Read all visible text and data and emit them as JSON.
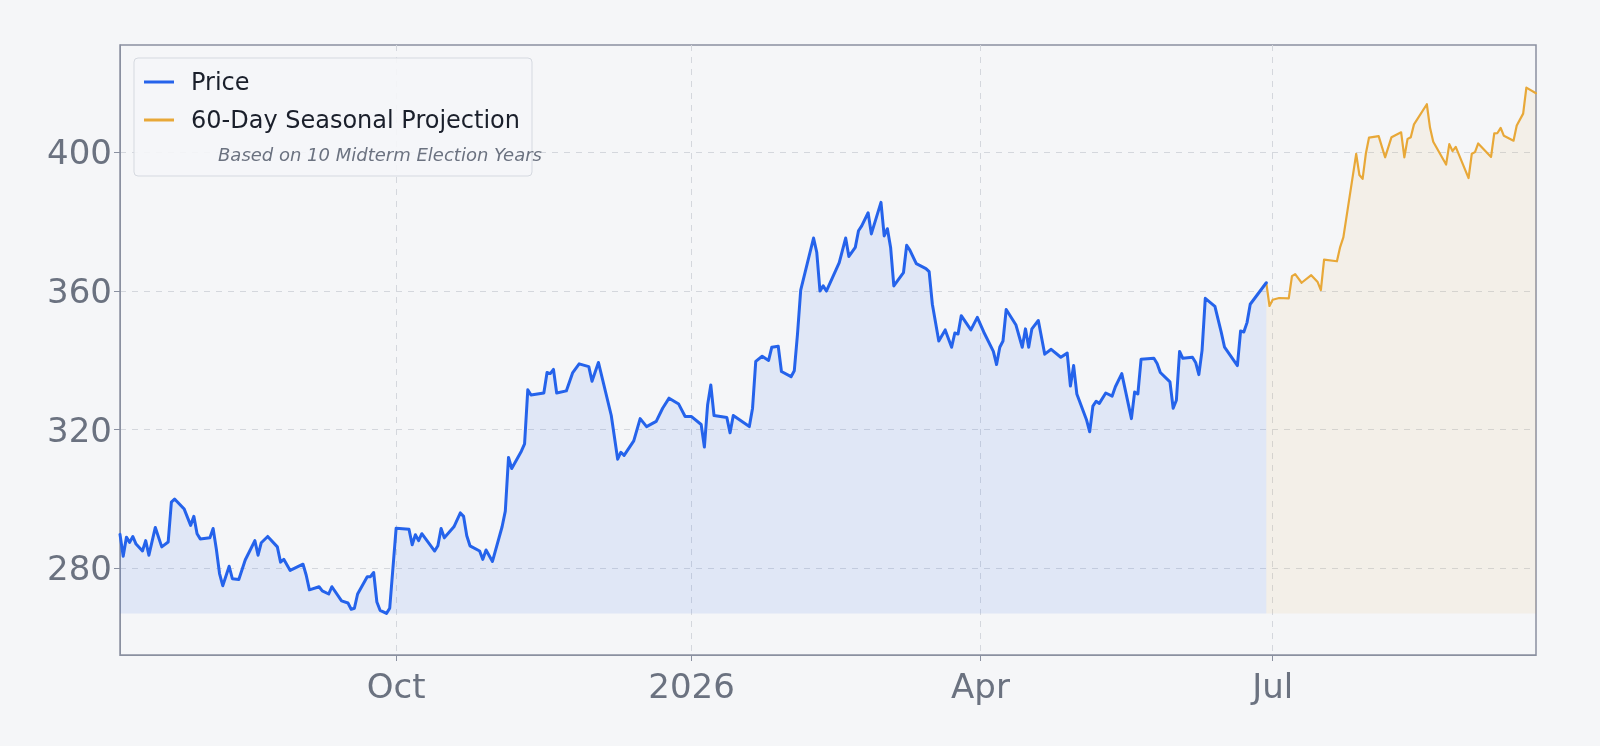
{
  "chart_data": {
    "type": "area",
    "marker": "none",
    "grid": true,
    "legend": "top left",
    "annotations": [
      "Based on 10 Midterm Election Years"
    ],
    "xlim": [
      "2025-07-07",
      "2026-09-21"
    ],
    "xticks": [
      {
        "value": "2025-10-01",
        "label": "Oct"
      },
      {
        "value": "2026-01-01",
        "label": "2026"
      },
      {
        "value": "2026-04-01",
        "label": "Apr"
      },
      {
        "value": "2026-07-01",
        "label": "Jul"
      }
    ],
    "ylim": [
      255,
      431
    ],
    "yticks": [
      280,
      320,
      360,
      400
    ],
    "series": [
      {
        "name": "Price",
        "color": "#2563eb",
        "x": [
          "2025-07-07",
          "2025-07-08",
          "2025-07-09",
          "2025-07-10",
          "2025-07-11",
          "2025-07-12",
          "2025-07-14",
          "2025-07-15",
          "2025-07-16",
          "2025-07-18",
          "2025-07-20",
          "2025-07-22",
          "2025-07-23",
          "2025-07-24",
          "2025-07-27",
          "2025-07-29",
          "2025-07-30",
          "2025-07-31",
          "2025-08-01",
          "2025-08-04",
          "2025-08-05",
          "2025-08-06",
          "2025-08-07",
          "2025-08-08",
          "2025-08-10",
          "2025-08-11",
          "2025-08-13",
          "2025-08-15",
          "2025-08-18",
          "2025-08-19",
          "2025-08-20",
          "2025-08-22",
          "2025-08-25",
          "2025-08-26",
          "2025-08-27",
          "2025-08-29",
          "2025-09-02",
          "2025-09-03",
          "2025-09-04",
          "2025-09-07",
          "2025-09-08",
          "2025-09-10",
          "2025-09-11",
          "2025-09-14",
          "2025-09-16",
          "2025-09-17",
          "2025-09-18",
          "2025-09-19",
          "2025-09-22",
          "2025-09-23",
          "2025-09-24",
          "2025-09-25",
          "2025-09-26",
          "2025-09-28",
          "2025-09-29",
          "2025-10-01",
          "2025-10-05",
          "2025-10-06",
          "2025-10-07",
          "2025-10-08",
          "2025-10-09",
          "2025-10-13",
          "2025-10-14",
          "2025-10-15",
          "2025-10-16",
          "2025-10-19",
          "2025-10-21",
          "2025-10-22",
          "2025-10-23",
          "2025-10-24",
          "2025-10-27",
          "2025-10-28",
          "2025-10-29",
          "2025-10-31",
          "2025-11-03",
          "2025-11-04",
          "2025-11-05",
          "2025-11-06",
          "2025-11-09",
          "2025-11-10",
          "2025-11-11",
          "2025-11-12",
          "2025-11-16",
          "2025-11-17",
          "2025-11-18",
          "2025-11-19",
          "2025-11-20",
          "2025-11-23",
          "2025-11-25",
          "2025-11-27",
          "2025-11-30",
          "2025-12-01",
          "2025-12-03",
          "2025-12-07",
          "2025-12-09",
          "2025-12-10",
          "2025-12-11",
          "2025-12-14",
          "2025-12-16",
          "2025-12-18",
          "2025-12-21",
          "2025-12-23",
          "2025-12-25",
          "2025-12-28",
          "2025-12-30",
          "2026-01-01",
          "2026-01-04",
          "2026-01-05",
          "2026-01-06",
          "2026-01-07",
          "2026-01-08",
          "2026-01-12",
          "2026-01-13",
          "2026-01-14",
          "2026-01-19",
          "2026-01-20",
          "2026-01-21",
          "2026-01-23",
          "2026-01-25",
          "2026-01-26",
          "2026-01-28",
          "2026-01-29",
          "2026-02-01",
          "2026-02-02",
          "2026-02-03",
          "2026-02-04",
          "2026-02-08",
          "2026-02-09",
          "2026-02-10",
          "2026-02-11",
          "2026-02-12",
          "2026-02-16",
          "2026-02-18",
          "2026-02-19",
          "2026-02-21",
          "2026-02-22",
          "2026-02-23",
          "2026-02-25",
          "2026-02-26",
          "2026-03-01",
          "2026-03-02",
          "2026-03-03",
          "2026-03-04",
          "2026-03-05",
          "2026-03-08",
          "2026-03-09",
          "2026-03-10",
          "2026-03-12",
          "2026-03-15",
          "2026-03-16",
          "2026-03-17",
          "2026-03-19",
          "2026-03-21",
          "2026-03-23",
          "2026-03-24",
          "2026-03-25",
          "2026-03-26",
          "2026-03-29",
          "2026-03-31",
          "2026-04-02",
          "2026-04-05",
          "2026-04-06",
          "2026-04-07",
          "2026-04-08",
          "2026-04-09",
          "2026-04-12",
          "2026-04-14",
          "2026-04-15",
          "2026-04-16",
          "2026-04-17",
          "2026-04-19",
          "2026-04-21",
          "2026-04-23",
          "2026-04-26",
          "2026-04-28",
          "2026-04-29",
          "2026-04-30",
          "2026-05-01",
          "2026-05-04",
          "2026-05-05",
          "2026-05-06",
          "2026-05-07",
          "2026-05-08",
          "2026-05-10",
          "2026-05-12",
          "2026-05-13",
          "2026-05-15",
          "2026-05-18",
          "2026-05-19",
          "2026-05-20",
          "2026-05-21",
          "2026-05-25",
          "2026-05-26",
          "2026-05-27",
          "2026-05-30",
          "2026-05-31",
          "2026-06-01",
          "2026-06-02",
          "2026-06-03",
          "2026-06-06",
          "2026-06-07",
          "2026-06-08",
          "2026-06-09",
          "2026-06-10",
          "2026-06-13",
          "2026-06-15",
          "2026-06-16",
          "2026-06-20",
          "2026-06-21",
          "2026-06-22",
          "2026-06-23",
          "2026-06-24",
          "2026-06-29"
        ],
        "values": [
          289.8,
          283.5,
          289,
          287.5,
          289.2,
          287,
          285,
          288,
          283.8,
          291.8,
          286.2,
          287.6,
          299.1,
          300,
          297.1,
          292.4,
          295,
          290,
          288.5,
          288.8,
          291.5,
          285.6,
          278.5,
          275,
          280.6,
          277,
          276.8,
          282.4,
          288,
          283.8,
          287.4,
          289.2,
          286.2,
          281.8,
          282.6,
          279.4,
          281.2,
          278,
          273.8,
          274.7,
          273.5,
          272.6,
          274.7,
          270.6,
          270,
          268.2,
          268.5,
          272.6,
          277.6,
          277.6,
          278.8,
          270.3,
          267.9,
          267,
          268.5,
          291.6,
          291.3,
          286.8,
          289.7,
          288,
          290,
          285,
          286.5,
          291.5,
          288.8,
          292,
          296,
          295,
          289.4,
          286.5,
          285,
          282.6,
          285.3,
          282,
          292,
          296.5,
          312,
          308.8,
          313.8,
          315.9,
          331.5,
          330,
          330.6,
          336.5,
          336.2,
          337.4,
          330.6,
          331.2,
          336.5,
          339,
          338.2,
          334,
          339.4,
          324.1,
          311.5,
          313.5,
          312.6,
          316.8,
          323.2,
          320.9,
          322.4,
          326.2,
          329.1,
          327.4,
          323.8,
          323.8,
          321.5,
          315,
          327.1,
          332.9,
          324.1,
          323.5,
          319.1,
          324.1,
          320.9,
          326.2,
          339.7,
          341.2,
          340,
          343.8,
          344.1,
          336.8,
          335.3,
          337,
          347.6,
          360.3,
          375.3,
          371.2,
          360,
          361.5,
          360,
          368.2,
          375.3,
          370,
          372.6,
          377.4,
          378.8,
          382.6,
          376.5,
          385.6,
          375.9,
          378,
          372.6,
          361.5,
          365.3,
          373.2,
          371.8,
          367.9,
          366.5,
          365.6,
          356.2,
          345.6,
          348.8,
          343.8,
          347.9,
          347.6,
          352.9,
          348.8,
          352.4,
          348.2,
          342.6,
          338.8,
          343.8,
          345.6,
          354.7,
          350.3,
          343.8,
          349.1,
          343.8,
          349.1,
          351.5,
          341.8,
          343.2,
          340.9,
          342.1,
          332.6,
          338.5,
          330.3,
          322.9,
          319.4,
          326.8,
          328.2,
          327.6,
          330.6,
          329.7,
          332.4,
          336.2,
          323.2,
          330.9,
          330.3,
          340.3,
          340.6,
          339.1,
          336.5,
          333.8,
          326.2,
          328.5,
          342.6,
          340.6,
          340.9,
          339.4,
          335.9,
          342.9,
          357.9,
          355.6,
          348,
          343.8,
          338.5,
          348.5,
          348.2,
          350.9,
          356.2,
          362.4
        ]
      },
      {
        "name": "60-Day Seasonal Projection",
        "color": "#e8a838",
        "x": [
          "2026-06-29",
          "2026-06-30",
          "2026-07-01",
          "2026-07-03",
          "2026-07-06",
          "2026-07-07",
          "2026-07-08",
          "2026-07-10",
          "2026-07-13",
          "2026-07-15",
          "2026-07-16",
          "2026-07-17",
          "2026-07-21",
          "2026-07-22",
          "2026-07-23",
          "2026-07-27",
          "2026-07-28",
          "2026-07-29",
          "2026-07-30",
          "2026-07-31",
          "2026-08-03",
          "2026-08-05",
          "2026-08-07",
          "2026-08-10",
          "2026-08-11",
          "2026-08-12",
          "2026-08-13",
          "2026-08-14",
          "2026-08-18",
          "2026-08-19",
          "2026-08-20",
          "2026-08-24",
          "2026-08-25",
          "2026-08-26",
          "2026-08-27",
          "2026-08-31",
          "2026-09-01",
          "2026-09-02",
          "2026-09-03",
          "2026-09-07",
          "2026-09-08",
          "2026-09-09",
          "2026-09-10",
          "2026-09-11",
          "2026-09-14",
          "2026-09-15",
          "2026-09-17",
          "2026-09-18",
          "2026-09-21"
        ],
        "values": [
          362.4,
          355.7,
          357.5,
          358,
          357.9,
          364.3,
          364.9,
          362.4,
          364.6,
          362.6,
          360.3,
          369.1,
          368.6,
          372.7,
          375.5,
          399.6,
          393.5,
          392.4,
          399.6,
          404.3,
          404.7,
          398.6,
          404.4,
          405.8,
          398.6,
          403.9,
          404.4,
          408.1,
          413.9,
          407.1,
          403.1,
          396.5,
          402.4,
          400.4,
          401.6,
          392.6,
          399.6,
          400.1,
          402.6,
          398.7,
          405.5,
          405.6,
          407.1,
          404.8,
          403.4,
          407.8,
          411.2,
          418.7,
          417.1
        ]
      }
    ]
  }
}
